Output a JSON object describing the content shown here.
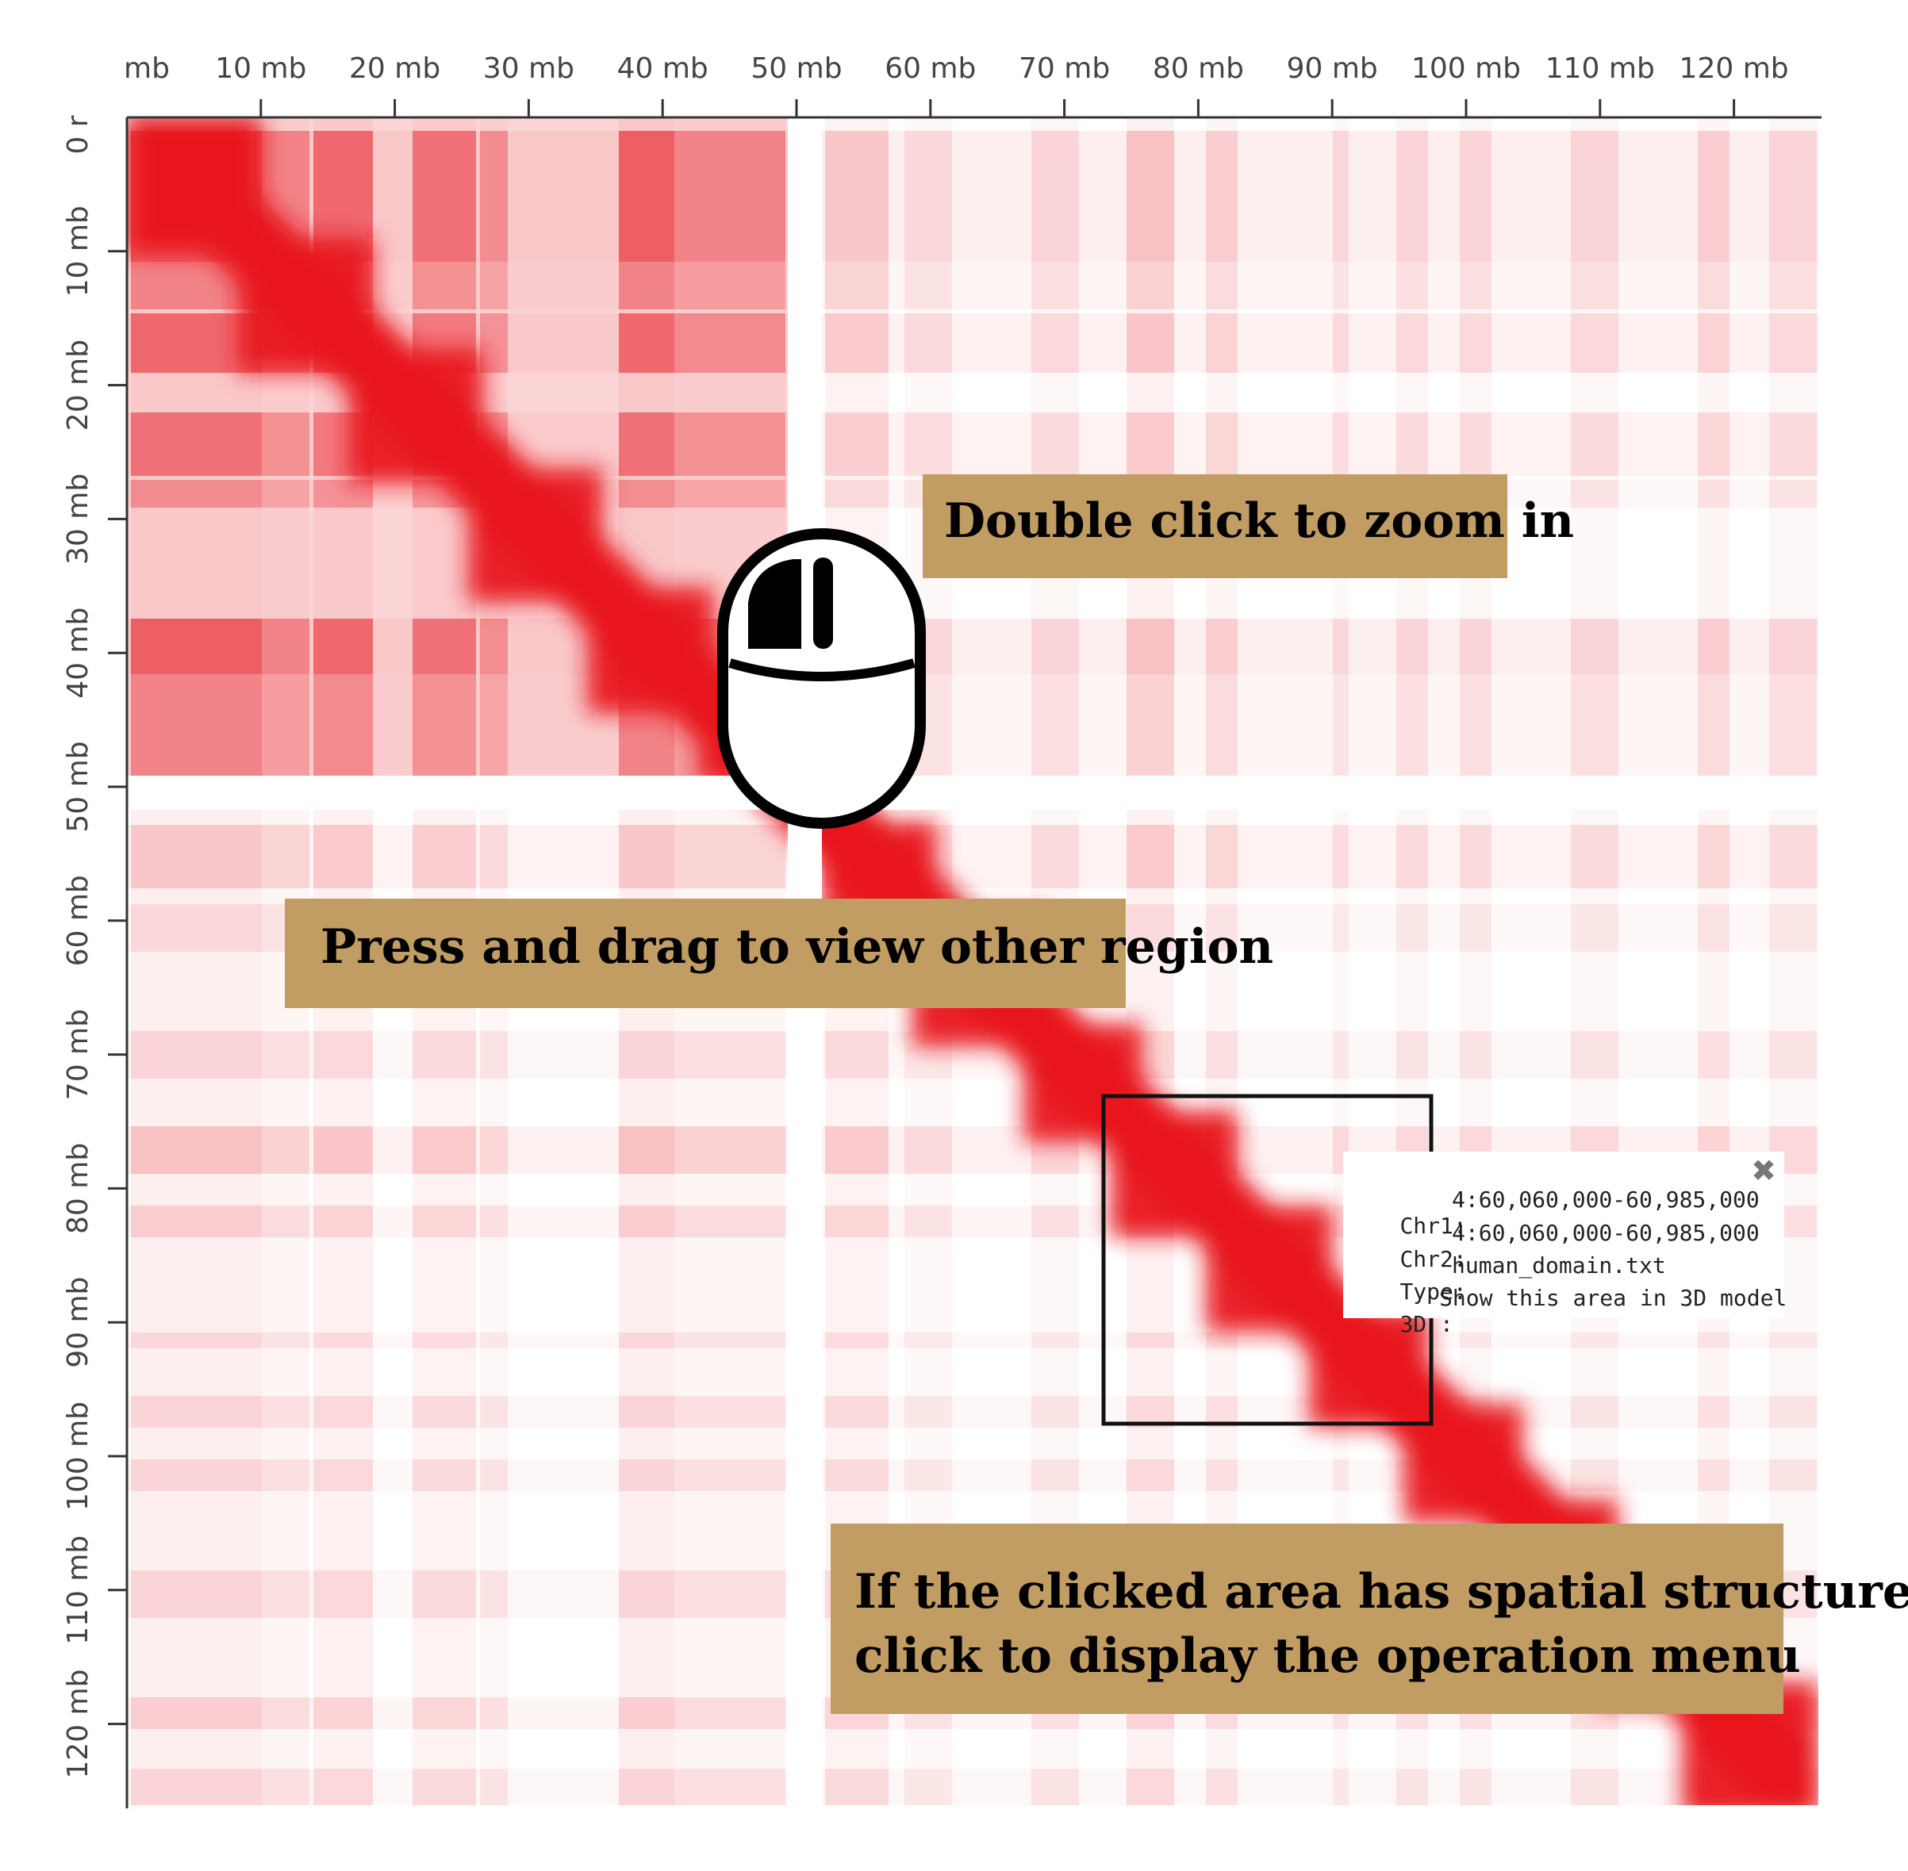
{
  "axis": {
    "x_ticks": [
      "mb",
      "10 mb",
      "20 mb",
      "30 mb",
      "40 mb",
      "50 mb",
      "60 mb",
      "70 mb",
      "80 mb",
      "90 mb",
      "100 mb",
      "110 mb",
      "120 mb"
    ],
    "y_ticks": [
      "0 r",
      "10 mb",
      "20 mb",
      "30 mb",
      "40 mb",
      "50 mb",
      "60 mb",
      "70 mb",
      "80 mb",
      "90 mb",
      "100 mb",
      "110 mb",
      "120 mb"
    ]
  },
  "heatmap": {
    "color": "#e8141c",
    "background": "#ffffff"
  },
  "callouts": {
    "zoom": "Double click to zoom in",
    "drag": "Press and drag to view other region",
    "menu_line1": "If the clicked area has spatial structure,",
    "menu_line2": "click to display the operation menu",
    "color": "#c19d64"
  },
  "mouse_icon": "computer-mouse-icon",
  "popup": {
    "close_icon": "close-icon",
    "chr1_label": "Chr1:",
    "chr1_value": "4:60,060,000-60,985,000",
    "chr2_label": "Chr2:",
    "chr2_value": "4:60,060,000-60,985,000",
    "type_label": "Type:",
    "type_value": "human_domain.txt",
    "model_label": "3D :",
    "model_value": "Show this area in 3D model"
  }
}
